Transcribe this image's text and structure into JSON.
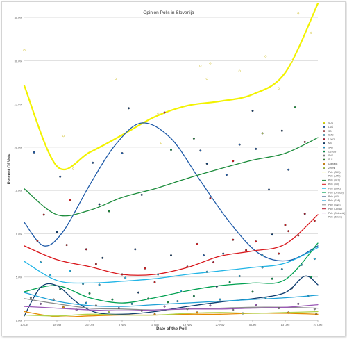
{
  "chart_data": {
    "type": "scatter",
    "title": "Opinion Polls in Slovenija",
    "xlabel": "Date of the Poll",
    "ylabel": "Percent Of Vote",
    "grid": true,
    "legend_position": "right",
    "ylim": [
      0,
      35
    ],
    "yticks": [
      "0.0%",
      "5.0%",
      "10.0%",
      "15.0%",
      "20.0%",
      "25.0%",
      "30.0%",
      "35.0%"
    ],
    "xticks": [
      "10 Oct",
      "18 Oct",
      "26 Oct",
      "3 Nov",
      "11 Nov",
      "19 Nov",
      "27 Nov",
      "5 Dec",
      "13 Dec",
      "21 Dec"
    ],
    "xlim": [
      0,
      9
    ],
    "legend": [
      {
        "label": "SDS",
        "color": "#f2f200",
        "type": "marker"
      },
      {
        "label": "LMŠ",
        "color": "#1e5aa8",
        "type": "marker"
      },
      {
        "label": "SD",
        "color": "#d9171c",
        "type": "marker"
      },
      {
        "label": "SMC",
        "color": "#22b5e6",
        "type": "marker"
      },
      {
        "label": "Levica",
        "color": "#b4132c",
        "type": "marker"
      },
      {
        "label": "NSi",
        "color": "#0c3b6e",
        "type": "marker"
      },
      {
        "label": "SAB",
        "color": "#1ea0d6",
        "type": "marker"
      },
      {
        "label": "DeSUS",
        "color": "#00a050",
        "type": "marker"
      },
      {
        "label": "SNS",
        "color": "#8b8b8b",
        "type": "marker"
      },
      {
        "label": "SLS",
        "color": "#2f8a2f",
        "type": "marker"
      },
      {
        "label": "Dobra dr.",
        "color": "#e58a00",
        "type": "marker"
      },
      {
        "label": "Zeleni",
        "color": "#b0d24a",
        "type": "marker"
      },
      {
        "label": "Poly. (SDS)",
        "color": "#f2f200",
        "type": "line"
      },
      {
        "label": "Poly. (LMŠ)",
        "color": "#1e5aa8",
        "type": "line"
      },
      {
        "label": "Poly. (SLS)",
        "color": "#1a8b3a",
        "type": "line"
      },
      {
        "label": "Poly. (SD)",
        "color": "#d9171c",
        "type": "line"
      },
      {
        "label": "Poly. (SMC)",
        "color": "#22b5e6",
        "type": "line"
      },
      {
        "label": "Poly. (DeSUS)",
        "color": "#00a050",
        "type": "line"
      },
      {
        "label": "Poly. (NSi)",
        "color": "#0c3b6e",
        "type": "line"
      },
      {
        "label": "Poly. (SAB)",
        "color": "#1ea0d6",
        "type": "line"
      },
      {
        "label": "Poly. (SNS)",
        "color": "#8b8b8b",
        "type": "line"
      },
      {
        "label": "Poly. (Levica)",
        "color": "#b4132c",
        "type": "line"
      },
      {
        "label": "Poly. (Dobra dr.)",
        "color": "#9b59b6",
        "type": "line"
      },
      {
        "label": "Poly. (Zeleni)",
        "color": "#e58a00",
        "type": "line"
      }
    ],
    "series": [
      {
        "color": "#f2f200",
        "x": [
          0,
          1,
          2,
          3,
          4,
          5,
          6,
          7,
          8,
          9
        ],
        "y": [
          27.1,
          17.8,
          19.4,
          21.4,
          23.5,
          24.8,
          25.3,
          26.1,
          28.6,
          36.6
        ]
      },
      {
        "color": "#1e5aa8",
        "x": [
          0,
          0.6,
          1.2,
          2,
          2.8,
          3.6,
          4.5,
          5.4,
          6.3,
          7.2,
          8.1,
          9
        ],
        "y": [
          11.3,
          8.6,
          10.3,
          15.6,
          20.3,
          22.8,
          21.0,
          16.1,
          11.3,
          7.7,
          6.9,
          8.6
        ]
      },
      {
        "color": "#1a8b3a",
        "x": [
          0,
          1,
          2,
          3,
          4,
          5,
          6,
          7,
          8,
          9
        ],
        "y": [
          15.2,
          12.2,
          12.7,
          14.2,
          15.2,
          16.4,
          17.5,
          18.5,
          19.3,
          21.1
        ]
      },
      {
        "color": "#d9171c",
        "x": [
          0,
          1,
          2,
          3,
          4,
          5,
          6,
          7,
          8,
          9
        ],
        "y": [
          8.6,
          7.0,
          6.2,
          5.3,
          5.3,
          6.1,
          7.4,
          8.0,
          8.8,
          12.2
        ]
      },
      {
        "color": "#22b5e6",
        "x": [
          0,
          1,
          2,
          3,
          4,
          5,
          6,
          7,
          8,
          9
        ],
        "y": [
          6.8,
          4.6,
          4.3,
          4.5,
          4.8,
          5.3,
          5.7,
          6.1,
          6.6,
          8.4
        ]
      },
      {
        "color": "#00a050",
        "x": [
          0,
          1,
          2,
          3,
          4,
          5,
          6,
          7,
          8,
          9
        ],
        "y": [
          3.3,
          4.0,
          2.6,
          2.0,
          2.6,
          3.4,
          4.0,
          4.3,
          4.7,
          8.9
        ]
      },
      {
        "color": "#0c3b6e",
        "x": [
          0,
          0.5,
          1,
          1.6,
          2.2,
          3,
          4,
          5,
          6,
          7,
          8,
          8.6,
          9
        ],
        "y": [
          0.5,
          3.8,
          4.0,
          2.1,
          0.9,
          0.7,
          1.0,
          1.6,
          2.1,
          2.5,
          3.2,
          5.1,
          4.1
        ]
      },
      {
        "color": "#1ea0d6",
        "x": [
          0,
          1,
          2,
          3,
          4,
          5,
          6,
          7,
          8,
          9
        ],
        "y": [
          3.2,
          2.2,
          1.7,
          1.6,
          1.8,
          2.0,
          2.2,
          2.4,
          2.6,
          2.9
        ]
      },
      {
        "color": "#8b8b8b",
        "x": [
          0,
          1,
          2,
          3,
          4,
          5,
          6,
          7,
          8,
          9
        ],
        "y": [
          2.5,
          1.9,
          1.4,
          1.3,
          1.2,
          1.3,
          1.4,
          1.5,
          1.5,
          1.4
        ]
      },
      {
        "color": "#9b59b6",
        "x": [
          0,
          1,
          2,
          3,
          4,
          5,
          6,
          7,
          8,
          9
        ],
        "y": [
          1.6,
          1.4,
          1.2,
          1.1,
          1.2,
          1.3,
          1.3,
          1.4,
          1.5,
          1.8
        ]
      },
      {
        "color": "#e58a00",
        "x": [
          0,
          1,
          2,
          3,
          4,
          5,
          6,
          7,
          8,
          9
        ],
        "y": [
          1.0,
          0.4,
          0.5,
          0.6,
          0.6,
          0.7,
          0.7,
          0.8,
          0.8,
          0.7
        ]
      },
      {
        "color": "#b0d24a",
        "x": [
          0,
          1,
          2,
          3,
          4,
          5,
          6,
          7,
          8,
          9
        ],
        "y": [
          0.6,
          0.5,
          0.7,
          0.6,
          0.6,
          0.8,
          0.9,
          0.8,
          0.9,
          1.0
        ]
      }
    ],
    "points": [
      [
        0.0,
        31.2,
        "#f2f200"
      ],
      [
        0.3,
        19.4,
        "#1e5aa8"
      ],
      [
        1.2,
        21.3,
        "#f2f200"
      ],
      [
        1.5,
        17.5,
        "#f2f200"
      ],
      [
        2.8,
        27.9,
        "#f2f200"
      ],
      [
        3.2,
        24.5,
        "#0c3b6e"
      ],
      [
        4.1,
        23.9,
        "#f2f200"
      ],
      [
        4.2,
        20.5,
        "#f2f200"
      ],
      [
        5.4,
        29.4,
        "#f2f200"
      ],
      [
        5.6,
        27.9,
        "#f2f200"
      ],
      [
        5.7,
        29.7,
        "#f2f200"
      ],
      [
        6.6,
        28.8,
        "#f2f200"
      ],
      [
        7.4,
        30.5,
        "#f2f200"
      ],
      [
        7.8,
        26.8,
        "#f2f200"
      ],
      [
        8.2,
        30.0,
        "#f2f200"
      ],
      [
        8.4,
        35.5,
        "#f2f200"
      ],
      [
        8.7,
        37.0,
        "#f2f200"
      ],
      [
        8.8,
        33.2,
        "#f2f200"
      ],
      [
        1.1,
        16.6,
        "#1e5aa8"
      ],
      [
        1.4,
        13.9,
        "#d9171c"
      ],
      [
        2.1,
        18.2,
        "#1e5aa8"
      ],
      [
        2.3,
        13.4,
        "#0c3b6e"
      ],
      [
        2.6,
        12.6,
        "#1a8b3a"
      ],
      [
        3.0,
        19.3,
        "#1e5aa8"
      ],
      [
        3.6,
        14.5,
        "#1e5aa8"
      ],
      [
        4.3,
        24.0,
        "#d9171c"
      ],
      [
        4.5,
        19.7,
        "#00a050"
      ],
      [
        5.2,
        21.0,
        "#1a8b3a"
      ],
      [
        5.4,
        19.6,
        "#1e5aa8"
      ],
      [
        5.6,
        18.1,
        "#0c3b6e"
      ],
      [
        5.7,
        14.1,
        "#b4132c"
      ],
      [
        6.2,
        16.8,
        "#1e5aa8"
      ],
      [
        6.4,
        18.4,
        "#d9171c"
      ],
      [
        6.6,
        20.3,
        "#1e5aa8"
      ],
      [
        7.0,
        24.2,
        "#0c3b6e"
      ],
      [
        7.1,
        19.8,
        "#1e5aa8"
      ],
      [
        7.3,
        21.6,
        "#b0d24a"
      ],
      [
        7.5,
        15.1,
        "#1e5aa8"
      ],
      [
        7.9,
        21.9,
        "#0c3b6e"
      ],
      [
        8.1,
        17.4,
        "#1e5aa8"
      ],
      [
        8.3,
        24.6,
        "#1a8b3a"
      ],
      [
        8.6,
        20.6,
        "#b4132c"
      ],
      [
        0.4,
        9.2,
        "#d9171c"
      ],
      [
        0.6,
        12.2,
        "#d9171c"
      ],
      [
        1.0,
        10.2,
        "#0c3b6e"
      ],
      [
        1.3,
        8.7,
        "#d9171c"
      ],
      [
        1.9,
        8.2,
        "#b4132c"
      ],
      [
        2.2,
        6.5,
        "#d9171c"
      ],
      [
        2.4,
        7.2,
        "#0c3b6e"
      ],
      [
        3.0,
        5.3,
        "#d9171c"
      ],
      [
        3.4,
        8.2,
        "#1e5aa8"
      ],
      [
        3.7,
        6.0,
        "#d9171c"
      ],
      [
        4.0,
        4.4,
        "#d9171c"
      ],
      [
        4.5,
        7.5,
        "#0c3b6e"
      ],
      [
        5.0,
        6.2,
        "#d9171c"
      ],
      [
        5.3,
        8.8,
        "#d9171c"
      ],
      [
        5.5,
        7.5,
        "#1e5aa8"
      ],
      [
        5.8,
        6.7,
        "#b4132c"
      ],
      [
        6.1,
        7.7,
        "#1e5aa8"
      ],
      [
        6.4,
        9.3,
        "#d9171c"
      ],
      [
        6.8,
        8.1,
        "#d9171c"
      ],
      [
        7.1,
        9.1,
        "#d9171c"
      ],
      [
        7.3,
        7.5,
        "#1ea0d6"
      ],
      [
        7.6,
        9.9,
        "#0c3b6e"
      ],
      [
        7.8,
        7.7,
        "#d9171c"
      ],
      [
        8.0,
        11.0,
        "#d9171c"
      ],
      [
        8.1,
        10.3,
        "#d9171c"
      ],
      [
        8.4,
        9.8,
        "#d9171c"
      ],
      [
        8.6,
        12.3,
        "#b4132c"
      ],
      [
        8.9,
        11.5,
        "#d9171c"
      ],
      [
        0.5,
        6.7,
        "#22b5e6"
      ],
      [
        0.8,
        5.2,
        "#22b5e6"
      ],
      [
        1.1,
        3.6,
        "#00a050"
      ],
      [
        1.4,
        5.7,
        "#22b5e6"
      ],
      [
        1.8,
        4.2,
        "#22b5e6"
      ],
      [
        2.0,
        3.1,
        "#00a050"
      ],
      [
        2.3,
        4.1,
        "#1ea0d6"
      ],
      [
        2.7,
        2.4,
        "#00a050"
      ],
      [
        3.1,
        4.9,
        "#22b5e6"
      ],
      [
        3.5,
        3.2,
        "#0c3b6e"
      ],
      [
        3.8,
        2.5,
        "#00a050"
      ],
      [
        4.1,
        5.3,
        "#22b5e6"
      ],
      [
        4.4,
        2.1,
        "#1a8b3a"
      ],
      [
        4.8,
        3.4,
        "#22b5e6"
      ],
      [
        5.2,
        2.8,
        "#00a050"
      ],
      [
        5.6,
        5.6,
        "#22b5e6"
      ],
      [
        5.9,
        3.9,
        "#0c3b6e"
      ],
      [
        6.3,
        4.4,
        "#00a050"
      ],
      [
        6.6,
        5.1,
        "#22b5e6"
      ],
      [
        7.0,
        3.3,
        "#1a8b3a"
      ],
      [
        7.3,
        6.1,
        "#22b5e6"
      ],
      [
        7.6,
        4.8,
        "#00a050"
      ],
      [
        7.9,
        5.9,
        "#1ea0d6"
      ],
      [
        8.2,
        3.7,
        "#0c3b6e"
      ],
      [
        8.5,
        6.4,
        "#22b5e6"
      ],
      [
        8.8,
        5.0,
        "#00a050"
      ],
      [
        8.9,
        7.1,
        "#22b5e6"
      ],
      [
        0.2,
        2.6,
        "#8b8b8b"
      ],
      [
        0.5,
        1.9,
        "#9b59b6"
      ],
      [
        0.9,
        2.4,
        "#8b8b8b"
      ],
      [
        1.2,
        1.5,
        "#e58a00"
      ],
      [
        1.6,
        1.2,
        "#9b59b6"
      ],
      [
        1.9,
        2.0,
        "#1ea0d6"
      ],
      [
        2.2,
        1.7,
        "#8b8b8b"
      ],
      [
        2.6,
        1.0,
        "#b0d24a"
      ],
      [
        2.9,
        1.4,
        "#9b59b6"
      ],
      [
        3.3,
        1.9,
        "#1ea0d6"
      ],
      [
        3.6,
        1.1,
        "#8b8b8b"
      ],
      [
        4.0,
        0.7,
        "#e58a00"
      ],
      [
        4.3,
        1.6,
        "#9b59b6"
      ],
      [
        4.7,
        2.2,
        "#1ea0d6"
      ],
      [
        5.0,
        1.3,
        "#8b8b8b"
      ],
      [
        5.3,
        0.9,
        "#e58a00"
      ],
      [
        5.7,
        1.7,
        "#9b59b6"
      ],
      [
        6.0,
        2.4,
        "#1ea0d6"
      ],
      [
        6.4,
        1.2,
        "#8b8b8b"
      ],
      [
        6.7,
        0.8,
        "#b0d24a"
      ],
      [
        7.1,
        1.8,
        "#9b59b6"
      ],
      [
        7.4,
        2.6,
        "#1ea0d6"
      ],
      [
        7.8,
        1.4,
        "#8b8b8b"
      ],
      [
        8.1,
        0.9,
        "#e58a00"
      ],
      [
        8.4,
        1.9,
        "#9b59b6"
      ],
      [
        8.7,
        2.8,
        "#1ea0d6"
      ],
      [
        8.9,
        1.3,
        "#8b8b8b"
      ],
      [
        8.95,
        0.7,
        "#e58a00"
      ]
    ]
  }
}
